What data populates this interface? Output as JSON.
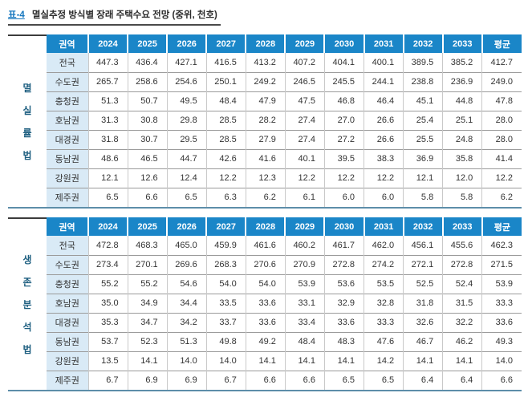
{
  "title": {
    "tag": "표-4",
    "text": "멸실추정 방식별 장래 주택수요 전망 (중위, 천호)"
  },
  "columns": [
    "권역",
    "2024",
    "2025",
    "2026",
    "2027",
    "2028",
    "2029",
    "2030",
    "2031",
    "2032",
    "2033",
    "평균"
  ],
  "tables": [
    {
      "method_label": "멸실률법",
      "method_chars": [
        "멸",
        "실",
        "률",
        "법"
      ],
      "rows": [
        {
          "region": "전국",
          "values": [
            "447.3",
            "436.4",
            "427.1",
            "416.5",
            "413.2",
            "407.2",
            "404.1",
            "400.1",
            "389.5",
            "385.2",
            "412.7"
          ]
        },
        {
          "region": "수도권",
          "values": [
            "265.7",
            "258.6",
            "254.6",
            "250.1",
            "249.2",
            "246.5",
            "245.5",
            "244.1",
            "238.8",
            "236.9",
            "249.0"
          ]
        },
        {
          "region": "충청권",
          "values": [
            "51.3",
            "50.7",
            "49.5",
            "48.4",
            "47.9",
            "47.5",
            "46.8",
            "46.4",
            "45.1",
            "44.8",
            "47.8"
          ]
        },
        {
          "region": "호남권",
          "values": [
            "31.3",
            "30.8",
            "29.8",
            "28.5",
            "28.2",
            "27.4",
            "27.0",
            "26.6",
            "25.4",
            "25.1",
            "28.0"
          ]
        },
        {
          "region": "대경권",
          "values": [
            "31.8",
            "30.7",
            "29.5",
            "28.5",
            "27.9",
            "27.4",
            "27.2",
            "26.6",
            "25.5",
            "24.8",
            "28.0"
          ]
        },
        {
          "region": "동남권",
          "values": [
            "48.6",
            "46.5",
            "44.7",
            "42.6",
            "41.6",
            "40.1",
            "39.5",
            "38.3",
            "36.9",
            "35.8",
            "41.4"
          ]
        },
        {
          "region": "강원권",
          "values": [
            "12.1",
            "12.6",
            "12.4",
            "12.2",
            "12.3",
            "12.2",
            "12.2",
            "12.2",
            "12.1",
            "12.0",
            "12.2"
          ]
        },
        {
          "region": "제주권",
          "values": [
            "6.5",
            "6.6",
            "6.5",
            "6.3",
            "6.2",
            "6.1",
            "6.0",
            "6.0",
            "5.8",
            "5.8",
            "6.2"
          ]
        }
      ]
    },
    {
      "method_label": "생존분석법",
      "method_chars": [
        "생",
        "존",
        "분",
        "석",
        "법"
      ],
      "rows": [
        {
          "region": "전국",
          "values": [
            "472.8",
            "468.3",
            "465.0",
            "459.9",
            "461.6",
            "460.2",
            "461.7",
            "462.0",
            "456.1",
            "455.6",
            "462.3"
          ]
        },
        {
          "region": "수도권",
          "values": [
            "273.4",
            "270.1",
            "269.6",
            "268.3",
            "270.6",
            "270.9",
            "272.8",
            "274.2",
            "272.1",
            "272.8",
            "271.5"
          ]
        },
        {
          "region": "충청권",
          "values": [
            "55.2",
            "55.2",
            "54.6",
            "54.0",
            "54.0",
            "53.9",
            "53.6",
            "53.5",
            "52.5",
            "52.4",
            "53.9"
          ]
        },
        {
          "region": "호남권",
          "values": [
            "35.0",
            "34.9",
            "34.4",
            "33.5",
            "33.6",
            "33.1",
            "32.9",
            "32.8",
            "31.8",
            "31.5",
            "33.3"
          ]
        },
        {
          "region": "대경권",
          "values": [
            "35.3",
            "34.7",
            "34.2",
            "33.7",
            "33.6",
            "33.4",
            "33.6",
            "33.3",
            "32.6",
            "32.2",
            "33.6"
          ]
        },
        {
          "region": "동남권",
          "values": [
            "53.7",
            "52.3",
            "51.3",
            "49.8",
            "49.2",
            "48.4",
            "48.3",
            "47.6",
            "46.7",
            "46.2",
            "49.3"
          ]
        },
        {
          "region": "강원권",
          "values": [
            "13.5",
            "14.1",
            "14.0",
            "14.0",
            "14.1",
            "14.1",
            "14.1",
            "14.2",
            "14.1",
            "14.1",
            "14.0"
          ]
        },
        {
          "region": "제주권",
          "values": [
            "6.7",
            "6.9",
            "6.9",
            "6.7",
            "6.6",
            "6.6",
            "6.5",
            "6.5",
            "6.4",
            "6.4",
            "6.6"
          ]
        }
      ]
    }
  ],
  "colors": {
    "header_bg": "#1a86c8",
    "header_text": "#ffffff",
    "region_col_bg": "#d9eaf6",
    "method_label_text": "#1e5f80",
    "tag_text": "#1878bf",
    "row_line": "#9b9b9b",
    "col_line": "#c9c9c9",
    "table_bottom": "#5d8ea9",
    "label_top": "#3c3c3c"
  }
}
